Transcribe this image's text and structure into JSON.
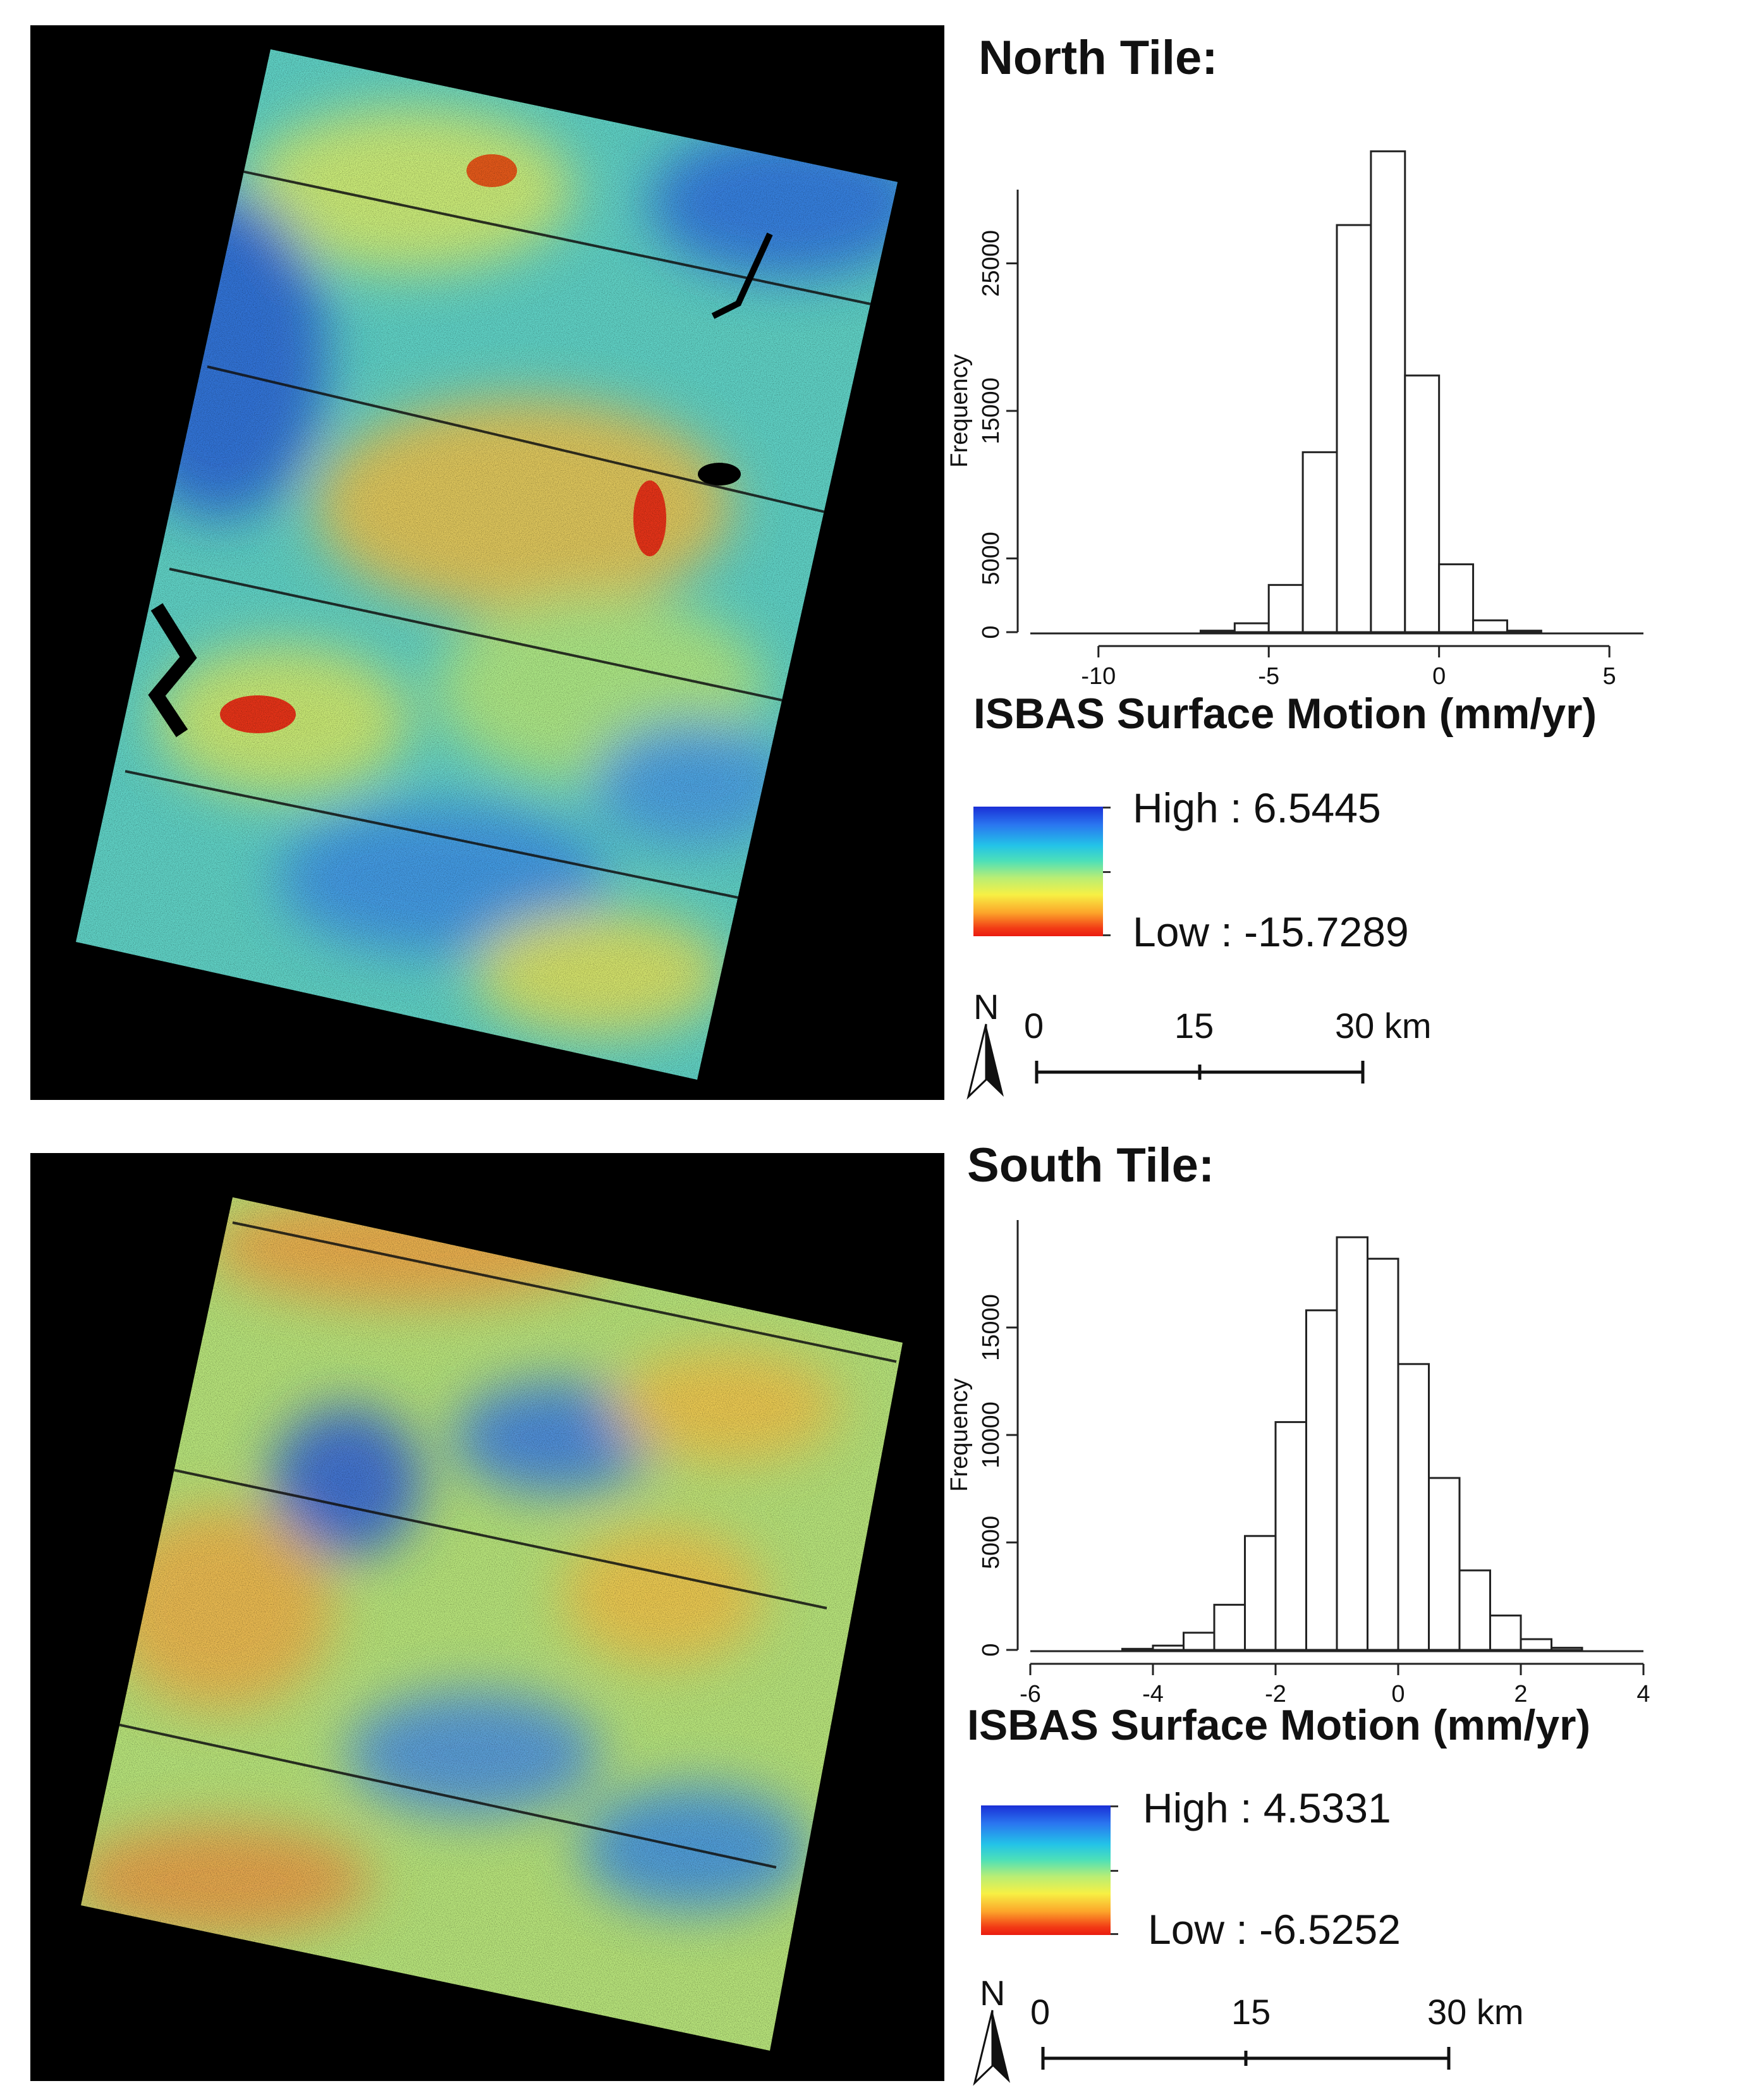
{
  "north": {
    "title": "North Tile:",
    "chart_data": {
      "type": "bar",
      "xlabel": "ISBAS Surface Motion (mm/yr)",
      "ylabel": "Frequency",
      "xlim": [
        -12,
        6
      ],
      "ylim": [
        0,
        30000
      ],
      "xticks": [
        "-10",
        "-5",
        "0",
        "5"
      ],
      "xtick_values": [
        -10,
        -5,
        0,
        5
      ],
      "yticks": [
        "0",
        "5000",
        "15000",
        "25000"
      ],
      "ytick_values": [
        0,
        5000,
        15000,
        25000
      ],
      "bin_width": 1,
      "bins": [
        -7,
        -6,
        -5,
        -4,
        -3,
        -2,
        -1,
        0,
        1,
        2
      ],
      "values": [
        100,
        600,
        3200,
        12200,
        27600,
        32600,
        17400,
        4600,
        800,
        100
      ]
    },
    "legend": {
      "high_label": "High",
      "high_value": "6.5445",
      "low_label": "Low",
      "low_value": "-15.7289",
      "separator": ":"
    },
    "scale": {
      "north_label": "N",
      "ticks": [
        "0",
        "15",
        "30 km"
      ]
    },
    "map_colors": {
      "high": "#1a2fd6",
      "mid": "#b9ee74",
      "low": "#ea1b10",
      "background": "#000000"
    }
  },
  "south": {
    "title": "South Tile:",
    "chart_data": {
      "type": "bar",
      "xlabel": "ISBAS Surface Motion (mm/yr)",
      "ylabel": "Frequency",
      "xlim": [
        -6,
        4
      ],
      "ylim": [
        0,
        20000
      ],
      "xticks": [
        "-6",
        "-4",
        "-2",
        "0",
        "2",
        "4"
      ],
      "xtick_values": [
        -6,
        -4,
        -2,
        0,
        2,
        4
      ],
      "yticks": [
        "0",
        "5000",
        "10000",
        "15000"
      ],
      "ytick_values": [
        0,
        5000,
        10000,
        15000
      ],
      "bin_width": 0.5,
      "bins": [
        -4.5,
        -4,
        -3.5,
        -3,
        -2.5,
        -2,
        -1.5,
        -1,
        -0.5,
        0,
        0.5,
        1,
        1.5,
        2,
        2.5
      ],
      "values": [
        50,
        200,
        800,
        2100,
        5300,
        10600,
        15800,
        19200,
        18200,
        13300,
        8000,
        3700,
        1600,
        500,
        100
      ]
    },
    "legend": {
      "high_label": "High",
      "high_value": "4.5331",
      "low_label": "Low",
      "low_value": "-6.5252",
      "separator": ":"
    },
    "scale": {
      "north_label": "N",
      "ticks": [
        "0",
        "15",
        "30 km"
      ]
    },
    "map_colors": {
      "high": "#1a2fd6",
      "mid": "#b9ee74",
      "low": "#ea1b10",
      "background": "#000000"
    }
  }
}
